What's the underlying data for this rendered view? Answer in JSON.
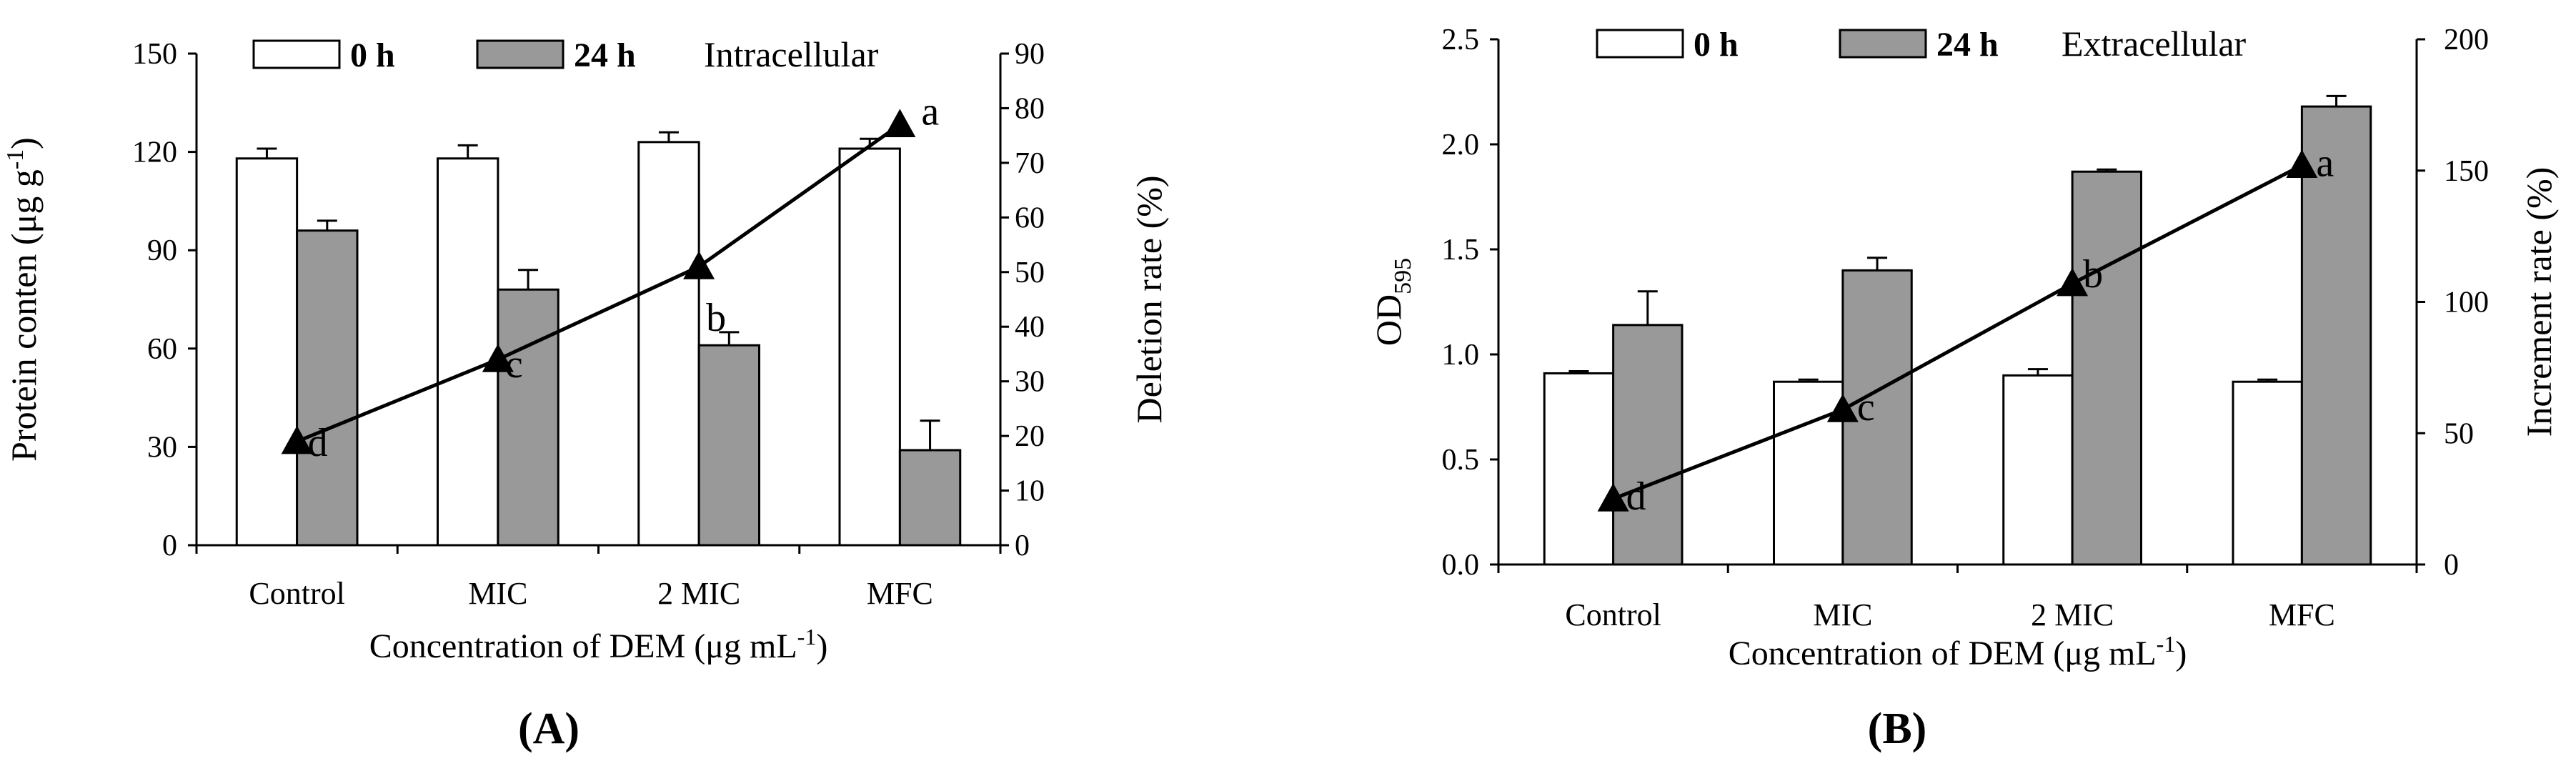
{
  "chart_data": [
    {
      "type": "bar",
      "panel_label": "(A)",
      "annotation": "Intracellular",
      "categories": [
        "Control",
        "MIC",
        "2 MIC",
        "MFC"
      ],
      "xlabel": "Concentration of DEM (μg mL",
      "xlabel_sup": "-1",
      "xlabel_end": ")",
      "ylabel": "Protein conten (μg g",
      "ylabel_sup": "-1",
      "ylabel_end": ")",
      "y2label": "Deletion rate (%)",
      "ylim": [
        0,
        150
      ],
      "yticks": [
        0,
        30,
        60,
        90,
        120,
        150
      ],
      "y2lim": [
        0,
        90
      ],
      "y2ticks": [
        0,
        10,
        20,
        30,
        40,
        50,
        60,
        70,
        80,
        90
      ],
      "series": [
        {
          "name": "0 h",
          "color": "#ffffff",
          "values": [
            118,
            118,
            123,
            121
          ],
          "errors": [
            3,
            4,
            3,
            3
          ]
        },
        {
          "name": "24 h",
          "color": "#999999",
          "values": [
            96,
            78,
            61,
            29
          ],
          "errors": [
            3,
            6,
            4,
            9
          ]
        }
      ],
      "line": {
        "axis": "y2",
        "values": [
          19,
          34,
          51,
          77
        ],
        "labels": [
          "d",
          "c",
          "b",
          "a"
        ],
        "color": "#000000"
      }
    },
    {
      "type": "bar",
      "panel_label": "(B)",
      "annotation": "Extracellular",
      "categories": [
        "Control",
        "MIC",
        "2 MIC",
        "MFC"
      ],
      "xlabel": "Concentration of DEM (μg mL",
      "xlabel_sup": "-1",
      "xlabel_end": ")",
      "ylabel": "OD",
      "ylabel_sub": "595",
      "y2label": "Increment rate (%)",
      "ylim": [
        0,
        2.5
      ],
      "yticks": [
        "0.0",
        "0.5",
        "1.0",
        "1.5",
        "2.0",
        "2.5"
      ],
      "y2lim": [
        0,
        200
      ],
      "y2ticks": [
        0,
        50,
        100,
        150,
        200
      ],
      "series": [
        {
          "name": "0 h",
          "color": "#ffffff",
          "values": [
            0.91,
            0.87,
            0.9,
            0.87
          ],
          "errors": [
            0.01,
            0.01,
            0.03,
            0.01
          ]
        },
        {
          "name": "24 h",
          "color": "#999999",
          "values": [
            1.14,
            1.4,
            1.87,
            2.18
          ],
          "errors": [
            0.16,
            0.06,
            0.01,
            0.05
          ]
        }
      ],
      "line": {
        "axis": "y2",
        "values": [
          25,
          59,
          107,
          152
        ],
        "labels": [
          "d",
          "c",
          "b",
          "a"
        ],
        "color": "#000000"
      }
    }
  ]
}
